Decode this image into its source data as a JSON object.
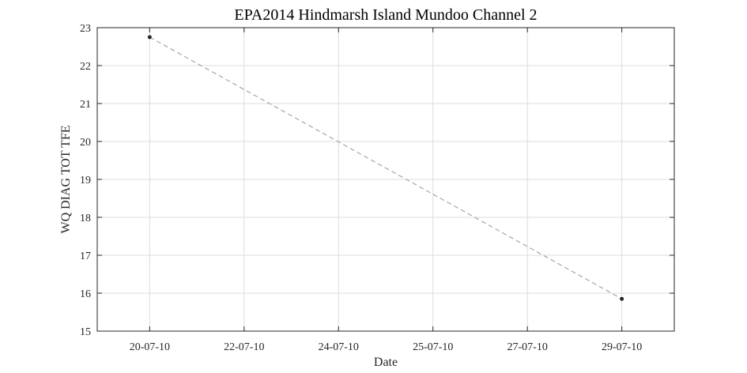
{
  "chart_data": {
    "type": "line",
    "title": "EPA2014 Hindmarsh Island Mundoo Channel 2",
    "xlabel": "Date",
    "ylabel": "WQ DIAG TOT TFE",
    "x_tick_labels": [
      "20-07-10",
      "22-07-10",
      "24-07-10",
      "25-07-10",
      "27-07-10",
      "29-07-10"
    ],
    "xlim": [
      "2010-07-19",
      "2010-07-30"
    ],
    "y_ticks": [
      15,
      16,
      17,
      18,
      19,
      20,
      21,
      22,
      23
    ],
    "ylim": [
      15,
      23
    ],
    "grid": true,
    "series": [
      {
        "line_style": "dashed",
        "line_color": "#a6a6a6",
        "marker_color": "#262626",
        "points": [
          {
            "x": "2010-07-20",
            "y": 22.75
          },
          {
            "x": "2010-07-29",
            "y": 15.85
          }
        ]
      }
    ]
  }
}
